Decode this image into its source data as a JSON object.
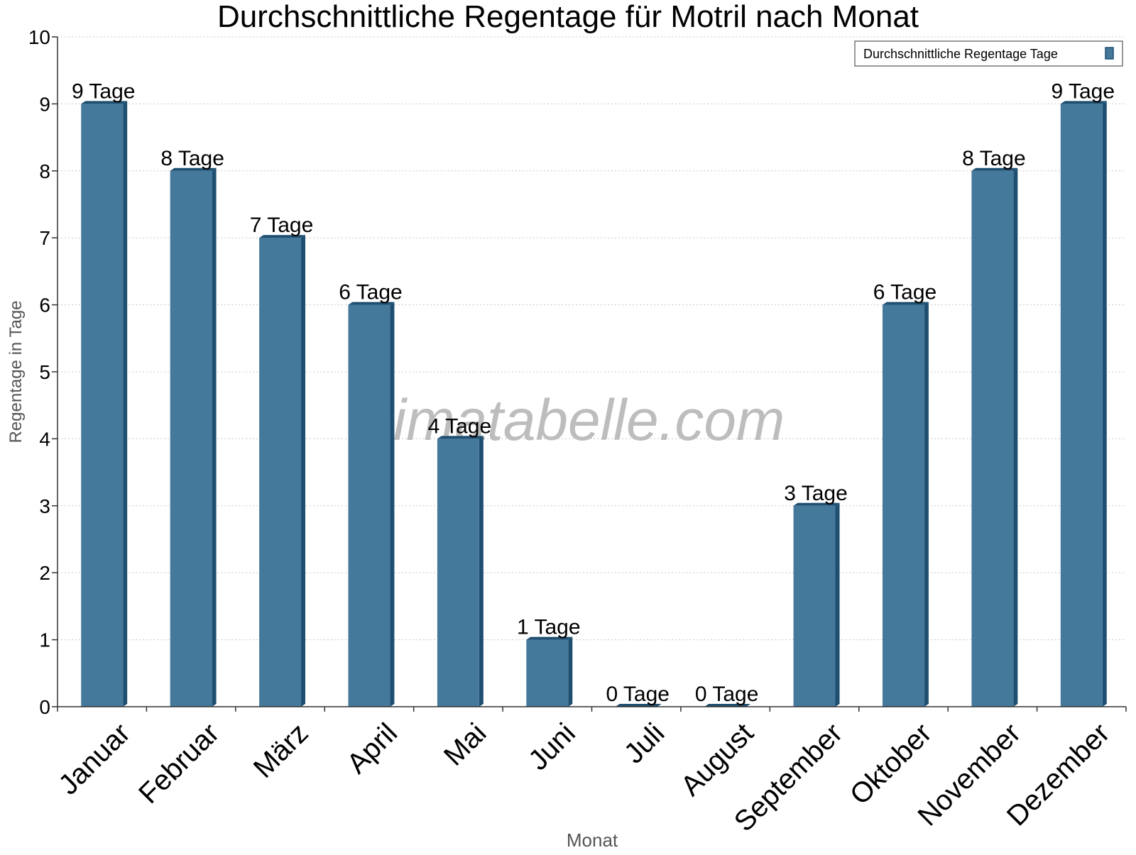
{
  "chart_data": {
    "type": "bar",
    "title": "Durchschnittliche Regentage für Motril nach Monat",
    "xlabel": "Monat",
    "ylabel": "Regentage in Tage",
    "categories": [
      "Januar",
      "Februar",
      "März",
      "April",
      "Mai",
      "Juni",
      "Juli",
      "August",
      "September",
      "Oktober",
      "November",
      "Dezember"
    ],
    "series": [
      {
        "name": "Durchschnittliche Regentage Tage",
        "values": [
          9,
          8,
          7,
          6,
          4,
          1,
          0,
          0,
          3,
          6,
          8,
          9
        ],
        "labels": [
          "9 Tage",
          "8 Tage",
          "7 Tage",
          "6 Tage",
          "4 Tage",
          "1 Tage",
          "0 Tage",
          "0 Tage",
          "3 Tage",
          "6 Tage",
          "8 Tage",
          "9 Tage"
        ]
      }
    ],
    "ylim": [
      0,
      10
    ],
    "yticks": [
      0,
      1,
      2,
      3,
      4,
      5,
      6,
      7,
      8,
      9,
      10
    ],
    "grid": true,
    "legend_position": "top-right",
    "watermark": "klimatabelle.com",
    "colors": {
      "bar_face": "#44799c",
      "bar_side": "#1f4f70",
      "bar_top": "#1f4f70",
      "grid": "#c8c8c8",
      "axis": "#333333",
      "axis_label": "#555555",
      "watermark": "#bdbdbd"
    }
  }
}
